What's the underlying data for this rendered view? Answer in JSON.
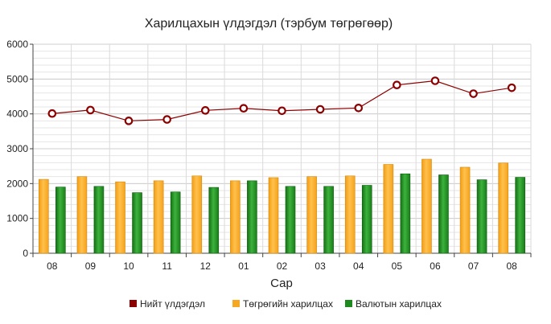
{
  "chart_data": {
    "type": "bar",
    "title": "Харилцахын үлдэгдэл (тэрбум төгрөгөөр)",
    "xlabel": "Сар",
    "ylabel": "",
    "ylim": [
      0,
      6000
    ],
    "yticks": [
      0,
      1000,
      2000,
      3000,
      4000,
      5000,
      6000
    ],
    "categories": [
      "08",
      "09",
      "10",
      "11",
      "12",
      "01",
      "02",
      "03",
      "04",
      "05",
      "06",
      "07",
      "08"
    ],
    "series": [
      {
        "name": "Нийт үлдэгдэл",
        "kind": "line",
        "color": "#8b0000",
        "values": [
          4010,
          4110,
          3800,
          3840,
          4100,
          4160,
          4090,
          4130,
          4170,
          4830,
          4950,
          4580,
          4750
        ]
      },
      {
        "name": "Төгрөгийн харилцах",
        "kind": "bar",
        "color": "#f7a823",
        "values": [
          2120,
          2200,
          2050,
          2080,
          2220,
          2080,
          2170,
          2200,
          2220,
          2550,
          2700,
          2470,
          2590
        ]
      },
      {
        "name": "Валютын харилцах",
        "kind": "bar",
        "color": "#1e8a1e",
        "values": [
          1900,
          1920,
          1740,
          1760,
          1890,
          2080,
          1920,
          1920,
          1950,
          2280,
          2250,
          2110,
          2180
        ]
      }
    ],
    "grid": true,
    "legend_position": "bottom"
  }
}
